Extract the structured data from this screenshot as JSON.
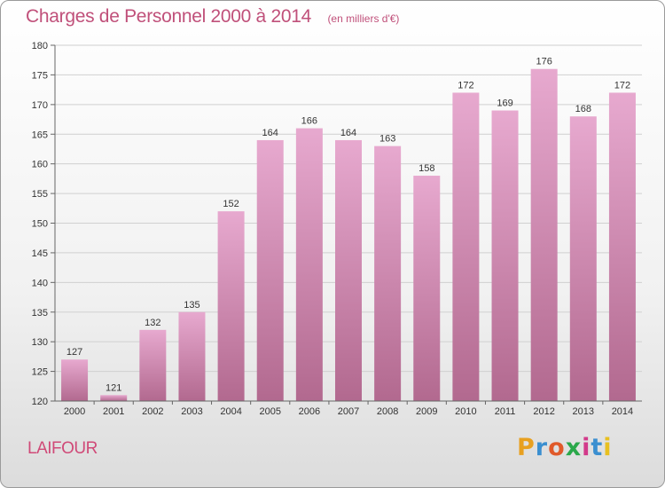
{
  "header": {
    "title": "Charges de Personnel 2000 à 2014",
    "subtitle": "(en milliers d'€)"
  },
  "footer": {
    "commune": "LAIFOUR",
    "logo_letters": [
      "P",
      "r",
      "o",
      "x",
      "i",
      "t",
      "i"
    ],
    "logo_colors": [
      "#e8a020",
      "#3b8fd0",
      "#e05a2a",
      "#2aa84a",
      "#d23a8a",
      "#3b8fd0",
      "#e8c020"
    ]
  },
  "chart_data": {
    "type": "bar",
    "categories": [
      "2000",
      "2001",
      "2002",
      "2003",
      "2004",
      "2005",
      "2006",
      "2007",
      "2008",
      "2009",
      "2010",
      "2011",
      "2012",
      "2013",
      "2014"
    ],
    "values": [
      127,
      121,
      132,
      135,
      152,
      164,
      166,
      164,
      163,
      158,
      172,
      169,
      176,
      168,
      172
    ],
    "title": "Charges de Personnel 2000 à 2014",
    "subtitle": "(en milliers d'€)",
    "xlabel": "",
    "ylabel": "",
    "ylim": [
      120,
      180
    ],
    "yticks": [
      120,
      125,
      130,
      135,
      140,
      145,
      150,
      155,
      160,
      165,
      170,
      175,
      180
    ],
    "grid": true,
    "bar_color_top": "#e7a9cf",
    "bar_color_bottom": "#b2698f"
  }
}
